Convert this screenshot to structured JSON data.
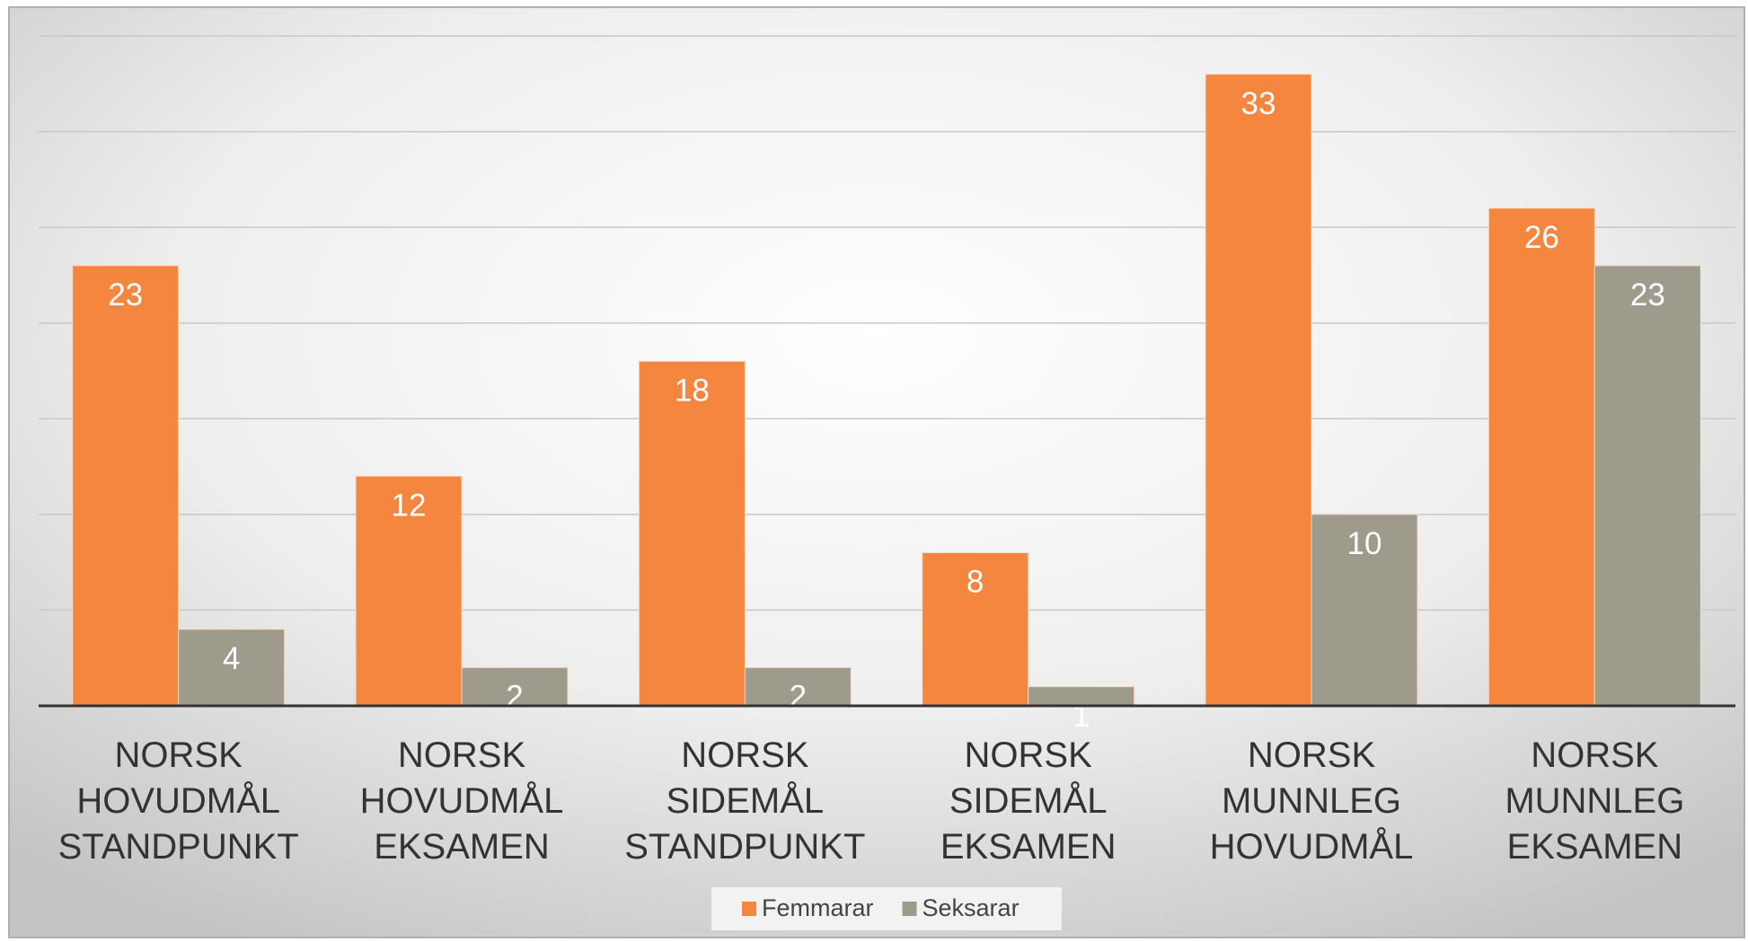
{
  "chart_data": {
    "type": "bar",
    "categories": [
      "NORSK\nHOVUDMÅL\nSTANDPUNKT",
      "NORSK\nHOVUDMÅL\nEKSAMEN",
      "NORSK\nSIDEMÅL\nSTANDPUNKT",
      "NORSK\nSIDEMÅL\nEKSAMEN",
      "NORSK\nMUNNLEG\nHOVUDMÅL",
      "NORSK\nMUNNLEG\nEKSAMEN"
    ],
    "series": [
      {
        "name": "Femmarar",
        "color": "#f4863f",
        "values": [
          23,
          12,
          18,
          8,
          33,
          26
        ]
      },
      {
        "name": "Seksarar",
        "color": "#9e9b8c",
        "values": [
          4,
          2,
          2,
          1,
          10,
          23
        ]
      }
    ],
    "ylim": [
      0,
      35
    ],
    "yticks": [
      0,
      5,
      10,
      15,
      20,
      25,
      30,
      35
    ],
    "grid": true
  }
}
